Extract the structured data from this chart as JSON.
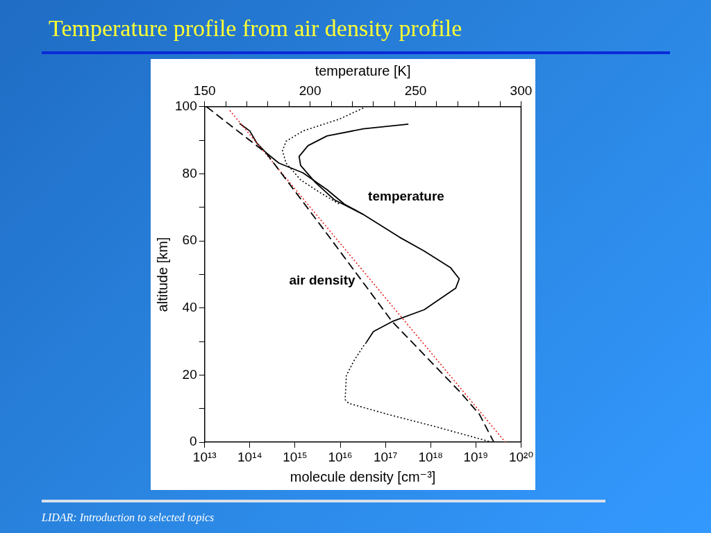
{
  "chart_data": {
    "type": "line",
    "title": "Temperature profile from air density profile",
    "xlabel": "molecule density [cm⁻³]",
    "x2label": "temperature [K]",
    "ylabel": "altitude [km]",
    "log": "x",
    "grid": false,
    "legend": false,
    "marker": "none",
    "xlim": [
      10000000000000.0,
      1e+20
    ],
    "xticks": [
      {
        "value": 10000000000000.0,
        "label": "10¹³"
      },
      {
        "value": 100000000000000.0,
        "label": "10¹⁴"
      },
      {
        "value": 1000000000000000.0,
        "label": "10¹⁵"
      },
      {
        "value": 1e+16,
        "label": "10¹⁶"
      },
      {
        "value": 1e+17,
        "label": "10¹⁷"
      },
      {
        "value": 1e+18,
        "label": "10¹⁸"
      },
      {
        "value": 1e+19,
        "label": "10¹⁹"
      },
      {
        "value": 1e+20,
        "label": "10²⁰"
      }
    ],
    "x2lim": [
      150,
      300
    ],
    "x2ticks": [
      150,
      {
        "value": 160,
        "label": null
      },
      {
        "value": 170,
        "label": null
      },
      {
        "value": 180,
        "label": null
      },
      {
        "value": 190,
        "label": null
      },
      200,
      {
        "value": 210,
        "label": null
      },
      {
        "value": 220,
        "label": null
      },
      {
        "value": 230,
        "label": null
      },
      {
        "value": 240,
        "label": null
      },
      250,
      {
        "value": 260,
        "label": null
      },
      {
        "value": 270,
        "label": null
      },
      {
        "value": 280,
        "label": null
      },
      {
        "value": 290,
        "label": null
      },
      300
    ],
    "ylim": [
      0,
      100
    ],
    "yticks": [
      0,
      {
        "value": 10,
        "label": null
      },
      20,
      {
        "value": 30,
        "label": null
      },
      40,
      {
        "value": 50,
        "label": null
      },
      60,
      {
        "value": 70,
        "label": null
      },
      80,
      {
        "value": 90,
        "label": null
      },
      100
    ],
    "series": [
      {
        "color": "#000000",
        "line_style": "dashed",
        "x": [
          11000000000000.0,
          230000000000000.0,
          4600000000000000.0,
          1.4e+17,
          4.6e+18,
          1.2e+19,
          2.5e+19
        ],
        "values": [
          100,
          86.2,
          62.9,
          36,
          14.8,
          8.3,
          0
        ]
      },
      {
        "color": "#e81c1c",
        "line_style": "dotted",
        "x": [
          36000000000000.0,
          4.5e+19
        ],
        "values": [
          98.9,
          0
        ]
      },
      {
        "color": "#000000",
        "line_style": "dotted",
        "axis": "x2",
        "x": [
          225.2,
          213.8,
          196.7,
          188.6,
          186.9,
          188.6,
          195.5,
          204.5,
          213.8
        ],
        "values": [
          99.6,
          96.3,
          92.8,
          89.7,
          86.9,
          83.2,
          78.2,
          74.5,
          71
        ]
      },
      {
        "color": "#000000",
        "line_style": "dotted",
        "axis": "x2",
        "x": [
          226.6,
          225.2,
          220.7,
          217.2,
          216.6,
          218.3,
          236.9,
          259.7,
          286.2
        ],
        "values": [
          29.7,
          28.6,
          24.2,
          19.9,
          12.7,
          11.6,
          8.3,
          4.6,
          0
        ]
      },
      {
        "color": "#000000",
        "line_style": "solid",
        "axis": "x2",
        "x": [
          246.6,
          225.2,
          208,
          199,
          194.8,
          195.5,
          202.4,
          211.4,
          225.2,
          242.4,
          254.1,
          266.6,
          270.7,
          269,
          254.1,
          239,
          230,
          226.6
        ],
        "values": [
          94.8,
          93.4,
          91.3,
          88.4,
          85.2,
          82.5,
          77.5,
          72.3,
          67.9,
          61.1,
          57,
          52,
          48.7,
          45.9,
          39.5,
          36,
          33,
          29.7
        ]
      },
      {
        "color": "#000000",
        "line_style": "solid",
        "axis": "x2",
        "x": [
          166.6,
          171.4,
          174.8,
          179.3,
          185.2,
          196.6,
          208,
          216.2,
          225.2
        ],
        "values": [
          95,
          92.8,
          89.1,
          86.2,
          83.2,
          80.3,
          75.3,
          71,
          67.9
        ]
      }
    ],
    "annotations": [
      "temperature",
      "air density",
      "LIDAR: Introduction to selected topics"
    ]
  }
}
